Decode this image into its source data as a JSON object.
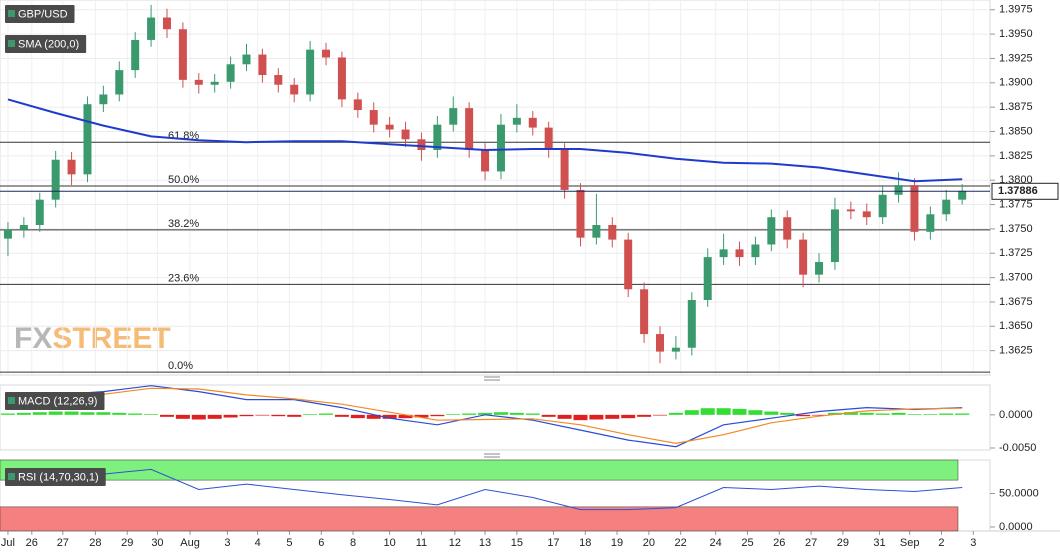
{
  "chart_data": [
    {
      "type": "candlestick",
      "title": "GBP/USD",
      "up_color": "#3a9a6e",
      "down_color": "#d05050",
      "ohlc": [
        [
          1.374,
          1.3757,
          1.3722,
          1.3749
        ],
        [
          1.3749,
          1.3762,
          1.3741,
          1.3754
        ],
        [
          1.3754,
          1.3787,
          1.3747,
          1.378
        ],
        [
          1.378,
          1.383,
          1.3772,
          1.3821
        ],
        [
          1.3821,
          1.3829,
          1.3795,
          1.3806
        ],
        [
          1.3806,
          1.3886,
          1.3798,
          1.3878
        ],
        [
          1.3878,
          1.3897,
          1.387,
          1.3888
        ],
        [
          1.3888,
          1.3922,
          1.3881,
          1.3913
        ],
        [
          1.3913,
          1.3952,
          1.3905,
          1.3944
        ],
        [
          1.3944,
          1.398,
          1.3937,
          1.3967
        ],
        [
          1.3967,
          1.3976,
          1.3946,
          1.3955
        ],
        [
          1.3955,
          1.3962,
          1.3895,
          1.3903
        ],
        [
          1.3903,
          1.391,
          1.3889,
          1.3898
        ],
        [
          1.3898,
          1.3909,
          1.389,
          1.3901
        ],
        [
          1.3901,
          1.3927,
          1.3894,
          1.3919
        ],
        [
          1.3919,
          1.394,
          1.3912,
          1.3929
        ],
        [
          1.3929,
          1.3935,
          1.39,
          1.3908
        ],
        [
          1.3908,
          1.3915,
          1.389,
          1.3898
        ],
        [
          1.3898,
          1.3905,
          1.388,
          1.3888
        ],
        [
          1.3888,
          1.3943,
          1.3881,
          1.3934
        ],
        [
          1.3934,
          1.3941,
          1.3918,
          1.3926
        ],
        [
          1.3926,
          1.3932,
          1.3875,
          1.3883
        ],
        [
          1.3883,
          1.389,
          1.3864,
          1.3872
        ],
        [
          1.3872,
          1.388,
          1.3849,
          1.3857
        ],
        [
          1.3857,
          1.3865,
          1.3844,
          1.3852
        ],
        [
          1.3852,
          1.386,
          1.3834,
          1.3842
        ],
        [
          1.3842,
          1.3849,
          1.382,
          1.3831
        ],
        [
          1.3831,
          1.3866,
          1.3823,
          1.3857
        ],
        [
          1.3857,
          1.3886,
          1.385,
          1.3874
        ],
        [
          1.3874,
          1.388,
          1.3823,
          1.3831
        ],
        [
          1.3831,
          1.3838,
          1.38,
          1.3809
        ],
        [
          1.3809,
          1.3868,
          1.3801,
          1.3857
        ],
        [
          1.3857,
          1.3878,
          1.3849,
          1.3864
        ],
        [
          1.3864,
          1.3871,
          1.3846,
          1.3854
        ],
        [
          1.3854,
          1.386,
          1.3823,
          1.3831
        ],
        [
          1.3831,
          1.3838,
          1.3781,
          1.379
        ],
        [
          1.379,
          1.3797,
          1.3732,
          1.3741
        ],
        [
          1.3741,
          1.3786,
          1.3734,
          1.3754
        ],
        [
          1.3754,
          1.3762,
          1.3731,
          1.3739
        ],
        [
          1.3739,
          1.3746,
          1.368,
          1.3688
        ],
        [
          1.3688,
          1.3695,
          1.3633,
          1.3642
        ],
        [
          1.3642,
          1.365,
          1.3612,
          1.3624
        ],
        [
          1.3624,
          1.364,
          1.3616,
          1.3628
        ],
        [
          1.3628,
          1.3685,
          1.362,
          1.3677
        ],
        [
          1.3677,
          1.373,
          1.367,
          1.3721
        ],
        [
          1.3721,
          1.3745,
          1.3713,
          1.3729
        ],
        [
          1.3729,
          1.3737,
          1.3712,
          1.3721
        ],
        [
          1.3721,
          1.3742,
          1.3713,
          1.3734
        ],
        [
          1.3734,
          1.377,
          1.3727,
          1.3762
        ],
        [
          1.3762,
          1.3769,
          1.373,
          1.3739
        ],
        [
          1.3739,
          1.3746,
          1.369,
          1.3703
        ],
        [
          1.3703,
          1.3725,
          1.3695,
          1.3716
        ],
        [
          1.3716,
          1.3782,
          1.3708,
          1.377
        ],
        [
          1.377,
          1.3778,
          1.376,
          1.3768
        ],
        [
          1.3768,
          1.3776,
          1.3754,
          1.3762
        ],
        [
          1.3762,
          1.3795,
          1.3755,
          1.3785
        ],
        [
          1.3785,
          1.3808,
          1.3777,
          1.3795
        ],
        [
          1.3795,
          1.3802,
          1.3738,
          1.3747
        ],
        [
          1.3747,
          1.3773,
          1.3739,
          1.3765
        ],
        [
          1.3765,
          1.379,
          1.3758,
          1.378
        ],
        [
          1.378,
          1.3796,
          1.3775,
          1.3789
        ]
      ],
      "sma": {
        "name": "SMA (200,0)",
        "color": "#1f3bcc",
        "x": [
          0,
          3,
          6,
          9,
          12,
          15,
          18,
          21,
          24,
          27,
          30,
          33,
          36,
          39,
          42,
          45,
          48,
          51,
          54,
          57,
          60
        ],
        "values": [
          1.3883,
          1.3869,
          1.3856,
          1.3845,
          1.3841,
          1.3839,
          1.384,
          1.384,
          1.3837,
          1.3834,
          1.3831,
          1.3832,
          1.3832,
          1.3828,
          1.3822,
          1.3818,
          1.3817,
          1.3813,
          1.3806,
          1.3799,
          1.3801
        ]
      },
      "fib_levels": [
        {
          "level": "61.8%",
          "price": 1.3839
        },
        {
          "level": "50.0%",
          "price": 1.3794
        },
        {
          "level": "38.2%",
          "price": 1.3749
        },
        {
          "level": "23.6%",
          "price": 1.3693
        },
        {
          "level": "0.0%",
          "price": 1.3603
        }
      ],
      "last_price": 1.37886,
      "watermark": [
        "FX",
        "STREET"
      ],
      "xlim": [
        -0.5,
        61.75
      ],
      "xticks": [
        {
          "value": 0,
          "label": "Jul"
        },
        {
          "value": 1.5,
          "label": "26"
        },
        {
          "value": 3.45,
          "label": "27"
        },
        {
          "value": 5.5,
          "label": "28"
        },
        {
          "value": 7.5,
          "label": "29"
        },
        {
          "value": 9.4,
          "label": "30"
        },
        {
          "value": 11.45,
          "label": "Aug"
        },
        {
          "value": 13.8,
          "label": "3"
        },
        {
          "value": 15.7,
          "label": "4"
        },
        {
          "value": 17.7,
          "label": "5"
        },
        {
          "value": 19.7,
          "label": "6"
        },
        {
          "value": 21.7,
          "label": "8"
        },
        {
          "value": 24,
          "label": "10"
        },
        {
          "value": 26,
          "label": "11"
        },
        {
          "value": 28.1,
          "label": "12"
        },
        {
          "value": 30,
          "label": "13"
        },
        {
          "value": 32,
          "label": "15"
        },
        {
          "value": 34.3,
          "label": "17"
        },
        {
          "value": 36.3,
          "label": "18"
        },
        {
          "value": 38.3,
          "label": "19"
        },
        {
          "value": 40.3,
          "label": "20"
        },
        {
          "value": 42.3,
          "label": "22"
        },
        {
          "value": 44.5,
          "label": "24"
        },
        {
          "value": 46.5,
          "label": "25"
        },
        {
          "value": 48.5,
          "label": "26"
        },
        {
          "value": 50.5,
          "label": "27"
        },
        {
          "value": 52.5,
          "label": "29"
        },
        {
          "value": 54.8,
          "label": "31"
        },
        {
          "value": 56.7,
          "label": "Sep"
        },
        {
          "value": 58.7,
          "label": "2"
        },
        {
          "value": 60.7,
          "label": "3"
        }
      ],
      "ylim": [
        1.36,
        1.3985
      ],
      "yticks": [
        1.3625,
        {
          "value": 1.365,
          "label": "1.3650"
        },
        1.3675,
        {
          "value": 1.37,
          "label": "1.3700"
        },
        1.3725,
        {
          "value": 1.375,
          "label": "1.3750"
        },
        1.3775,
        {
          "value": 1.38,
          "label": "1.3800"
        },
        1.3825,
        {
          "value": 1.385,
          "label": "1.3850"
        },
        1.3875,
        {
          "value": 1.39,
          "label": "1.3900"
        },
        1.3925,
        {
          "value": 1.395,
          "label": "1.3950"
        },
        1.3975
      ],
      "grid": true
    },
    {
      "type": "macd",
      "title": "MACD (12,26,9)",
      "xlim": [
        -0.5,
        61.75
      ],
      "ylim": [
        -0.0053,
        0.0045
      ],
      "yticks": [
        {
          "value": 0,
          "label": "0.0000"
        },
        {
          "value": -0.005,
          "label": "-0.0050"
        }
      ],
      "histogram": [
        0.0002,
        0.0003,
        0.0004,
        0.0005,
        0.0005,
        0.0004,
        0.0004,
        0.0003,
        0.0002,
        0.0001,
        -0.0003,
        -0.0006,
        -0.0007,
        -0.0006,
        -0.0004,
        -0.0002,
        -0.0001,
        -0.0002,
        -0.0003,
        0.0001,
        0.0002,
        -0.0003,
        -0.0005,
        -0.0006,
        -0.0006,
        -0.0005,
        -0.0004,
        -0.0002,
        0.0001,
        0.0002,
        0.0003,
        0.0004,
        0.0003,
        0.0002,
        -0.0003,
        -0.0006,
        -0.0008,
        -0.0007,
        -0.0006,
        -0.0005,
        -0.0003,
        -0.0001,
        0.0003,
        0.0007,
        0.001,
        0.001,
        0.0009,
        0.0007,
        0.0005,
        0.0003,
        -0.0002,
        -0.0001,
        0.0003,
        0.0004,
        0.0003,
        0.0002,
        0.0003,
        0.0001,
        0.0001,
        0.0002,
        0.0002
      ],
      "up_color": "#33dd33",
      "down_color": "#e02020",
      "series": [
        {
          "color": "#2a4bd7",
          "x": [
            0,
            3,
            6,
            9,
            12,
            15,
            18,
            21,
            24,
            27,
            30,
            33,
            36,
            39,
            42,
            45,
            48,
            51,
            54,
            57,
            60
          ],
          "values": [
            0.0023,
            0.003,
            0.0035,
            0.0044,
            0.0035,
            0.0023,
            0.0023,
            0.0011,
            -0.0005,
            -0.0015,
            0.0,
            -0.0008,
            -0.0023,
            -0.0038,
            -0.0048,
            -0.0015,
            -0.0005,
            0.0005,
            0.0011,
            0.0008,
            0.0011
          ]
        },
        {
          "color": "#f08a24",
          "x": [
            0,
            3,
            6,
            9,
            12,
            15,
            18,
            21,
            24,
            27,
            30,
            33,
            36,
            39,
            42,
            45,
            48,
            51,
            54,
            57,
            60
          ],
          "values": [
            0.002,
            0.0026,
            0.0031,
            0.004,
            0.0039,
            0.003,
            0.0024,
            0.0016,
            0.0004,
            -0.0008,
            -0.0007,
            -0.0006,
            -0.0015,
            -0.003,
            -0.0043,
            -0.003,
            -0.0012,
            -0.0002,
            0.0006,
            0.0009,
            0.001
          ]
        }
      ]
    },
    {
      "type": "rsi",
      "title": "RSI (14,70,30,1)",
      "xlim": [
        -0.5,
        61.75
      ],
      "ylim": [
        -6,
        100
      ],
      "yticks": [
        {
          "value": 0,
          "label": "0.0000"
        },
        {
          "value": 50,
          "label": "50.0000"
        }
      ],
      "overbought": 70,
      "oversold": 30,
      "overbought_color": "#7ef07e",
      "oversold_color": "#f58080",
      "color": "#3050d0",
      "x": [
        0,
        3,
        6,
        9,
        12,
        15,
        18,
        21,
        24,
        27,
        30,
        33,
        36,
        39,
        42,
        45,
        48,
        51,
        54,
        57,
        60
      ],
      "values": [
        71,
        79,
        79,
        86,
        56,
        64,
        56,
        48,
        41,
        33,
        56,
        44,
        26,
        26,
        29,
        59,
        56,
        61,
        56,
        53,
        59
      ]
    }
  ]
}
